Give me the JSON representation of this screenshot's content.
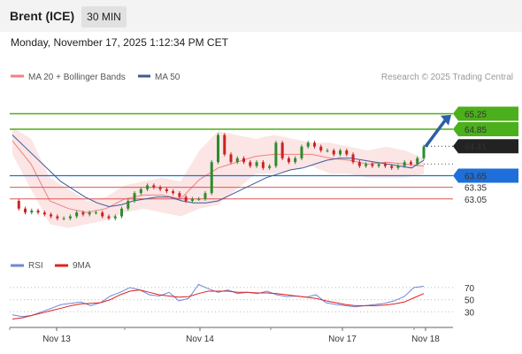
{
  "header": {
    "title": "Brent (ICE)",
    "timeframe": "30 MIN"
  },
  "datetime": "Monday, November 17, 2025 1:12:34 PM CET",
  "credit": "Research © 2025 Trading Central",
  "colors": {
    "up": "#2e8b2e",
    "down": "#cc2222",
    "bollinger": "#f08080",
    "ma50": "#3a5a9a",
    "resistance": "#4caf1c",
    "support_blue": "#1e6fd9",
    "support_red": "#e05555",
    "rsi": "#6f86d6",
    "rsi_ma": "#e02020",
    "arrow": "#2c5fa8"
  },
  "chart_data": [
    {
      "type": "candlestick",
      "title": "",
      "legend": [
        {
          "name": "MA 20 + Bollinger Bands",
          "color": "#f08080"
        },
        {
          "name": "MA 50",
          "color": "#3a5a9a"
        }
      ],
      "legend_position": "top-left",
      "x_ticks": [
        "Nov 13",
        "Nov 14",
        "Nov 17",
        "Nov 18"
      ],
      "ylim": [
        62.2,
        65.9
      ],
      "current_price": "64.41",
      "levels": [
        {
          "value": 65.25,
          "label": "65.25",
          "kind": "resistance"
        },
        {
          "value": 64.85,
          "label": "64.85",
          "kind": "resistance"
        },
        {
          "value": 63.65,
          "label": "63.65",
          "kind": "pivot"
        },
        {
          "value": 63.35,
          "label": "63.35",
          "kind": "support"
        },
        {
          "value": 63.05,
          "label": "63.05",
          "kind": "support"
        }
      ],
      "arrow": {
        "from": [
          64.4,
          64.4
        ],
        "to": [
          65.22,
          65.22
        ]
      },
      "price_path": [
        63.0,
        62.8,
        62.7,
        62.75,
        62.7,
        62.65,
        62.6,
        62.55,
        62.55,
        62.6,
        62.7,
        62.65,
        62.7,
        62.7,
        62.6,
        62.55,
        62.6,
        62.8,
        63.0,
        63.2,
        63.3,
        63.4,
        63.35,
        63.3,
        63.25,
        63.2,
        63.1,
        63.0,
        63.05,
        63.05,
        63.2,
        64.0,
        64.7,
        64.2,
        64.0,
        64.1,
        64.0,
        63.9,
        64.0,
        63.85,
        63.9,
        64.5,
        64.1,
        64.0,
        64.1,
        64.4,
        64.5,
        64.4,
        64.3,
        64.3,
        64.2,
        64.3,
        64.2,
        64.0,
        63.9,
        63.95,
        63.9,
        63.95,
        63.9,
        63.85,
        63.9,
        64.0,
        63.95,
        64.1,
        64.4
      ],
      "ma50_path": [
        64.7,
        64.4,
        64.1,
        63.8,
        63.5,
        63.3,
        63.1,
        62.95,
        62.85,
        62.9,
        63.0,
        63.05,
        63.1,
        63.1,
        63.0,
        62.95,
        62.95,
        63.0,
        63.15,
        63.3,
        63.45,
        63.6,
        63.7,
        63.8,
        63.85,
        63.95,
        64.05,
        64.1,
        64.1,
        64.05,
        64.0,
        63.95,
        63.9,
        63.85,
        64.05
      ],
      "bollinger_upper": [
        64.9,
        64.6,
        63.6,
        63.3,
        63.0,
        63.1,
        63.4,
        63.5,
        63.6,
        63.5,
        64.3,
        64.8,
        64.7,
        64.6,
        64.7,
        64.6,
        64.5,
        64.5,
        64.4,
        64.3,
        64.4,
        64.3,
        64.1
      ],
      "bollinger_lower": [
        64.2,
        63.3,
        62.4,
        62.3,
        62.4,
        62.5,
        62.7,
        62.8,
        62.7,
        62.6,
        62.8,
        62.9,
        63.3,
        63.7,
        63.7,
        63.8,
        63.9,
        63.7,
        63.7,
        63.6,
        63.6,
        63.6,
        63.7
      ]
    },
    {
      "type": "line",
      "title": "",
      "legend": [
        {
          "name": "RSI",
          "color": "#6f86d6"
        },
        {
          "name": "9MA",
          "color": "#e02020"
        }
      ],
      "legend_position": "top-left",
      "y_ticks": [
        70,
        50,
        30
      ],
      "ylim": [
        10,
        80
      ],
      "series": [
        {
          "name": "RSI",
          "values": [
            25,
            22,
            24,
            30,
            36,
            42,
            44,
            46,
            40,
            45,
            56,
            62,
            70,
            66,
            58,
            56,
            62,
            48,
            52,
            75,
            68,
            62,
            66,
            60,
            62,
            60,
            64,
            58,
            55,
            56,
            54,
            58,
            45,
            42,
            40,
            38,
            40,
            42,
            44,
            48,
            55,
            70,
            72
          ]
        },
        {
          "name": "9MA",
          "values": [
            18,
            20,
            24,
            28,
            32,
            36,
            40,
            43,
            44,
            45,
            50,
            58,
            64,
            66,
            62,
            58,
            56,
            54,
            55,
            60,
            64,
            64,
            64,
            62,
            62,
            61,
            61,
            60,
            58,
            56,
            54,
            52,
            48,
            45,
            42,
            40,
            40,
            40,
            41,
            43,
            46,
            53,
            60
          ]
        }
      ]
    }
  ]
}
